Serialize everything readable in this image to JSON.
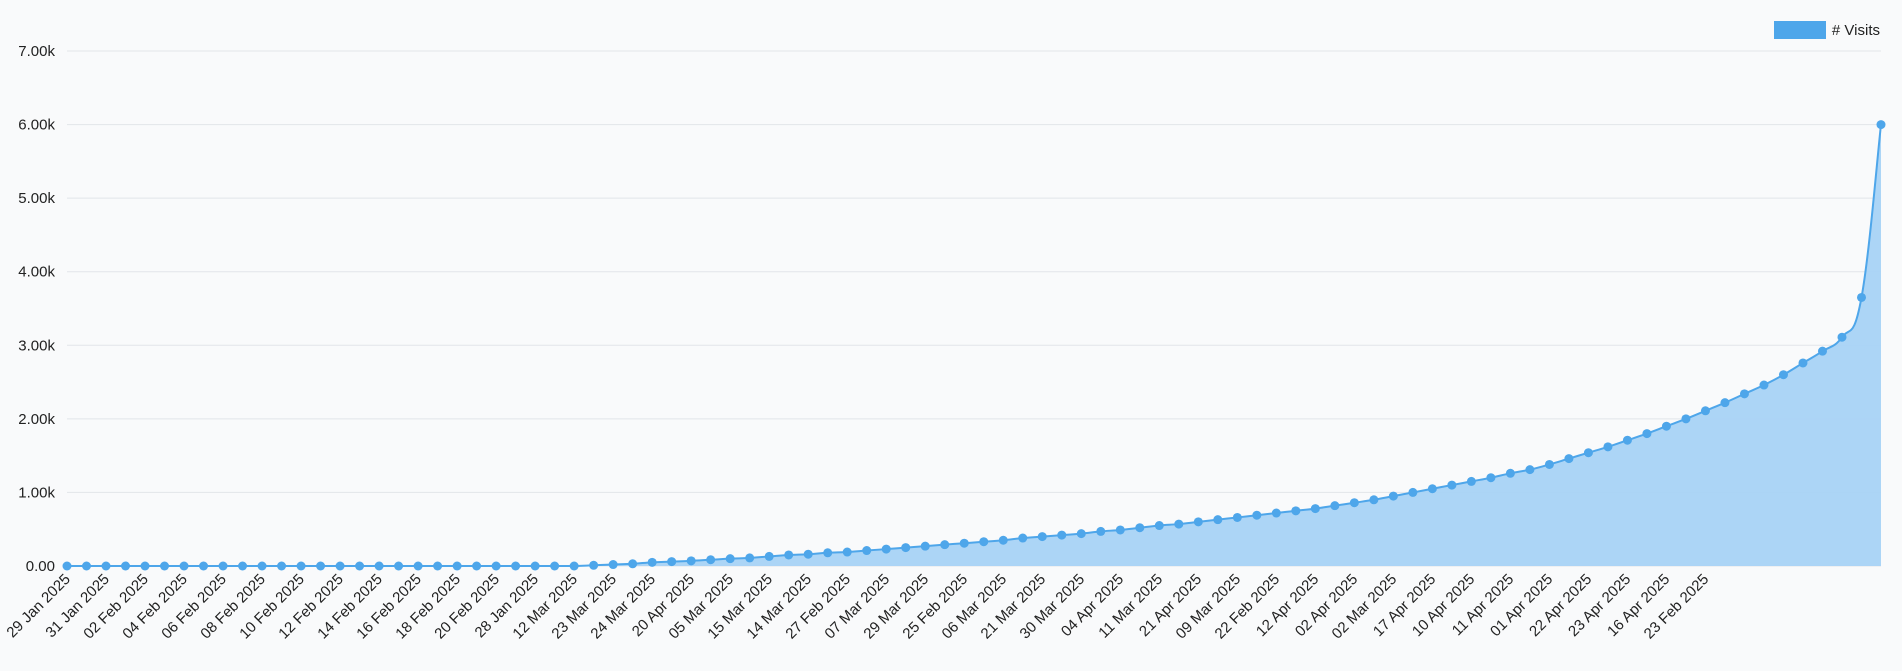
{
  "colors": {
    "line": "#4ea6ea",
    "fill": "#a8d3f6",
    "grid": "#e2e5e9",
    "text": "#222222"
  },
  "legend": {
    "label": "# Visits",
    "position": "top-right"
  },
  "chart_data": {
    "type": "area",
    "title": "",
    "xlabel": "",
    "ylabel": "",
    "ylim": [
      0,
      7000
    ],
    "yticks": [
      "0.00",
      "1.00k",
      "2.00k",
      "3.00k",
      "4.00k",
      "5.00k",
      "6.00k",
      "7.00k"
    ],
    "grid": true,
    "tick_labels": [
      "29 Jan 2025",
      "31 Jan 2025",
      "02 Feb 2025",
      "04 Feb 2025",
      "06 Feb 2025",
      "08 Feb 2025",
      "10 Feb 2025",
      "12 Feb 2025",
      "14 Feb 2025",
      "16 Feb 2025",
      "18 Feb 2025",
      "20 Feb 2025",
      "28 Jan 2025",
      "12 Mar 2025",
      "23 Mar 2025",
      "24 Mar 2025",
      "20 Apr 2025",
      "05 Mar 2025",
      "15 Mar 2025",
      "14 Mar 2025",
      "27 Feb 2025",
      "07 Mar 2025",
      "29 Mar 2025",
      "25 Feb 2025",
      "06 Mar 2025",
      "21 Mar 2025",
      "30 Mar 2025",
      "04 Apr 2025",
      "11 Mar 2025",
      "21 Apr 2025",
      "09 Mar 2025",
      "22 Feb 2025",
      "12 Apr 2025",
      "02 Apr 2025",
      "02 Mar 2025",
      "17 Apr 2025",
      "10 Apr 2025",
      "11 Apr 2025",
      "01 Apr 2025",
      "22 Apr 2025",
      "23 Apr 2025",
      "16 Apr 2025",
      "23 Feb 2025"
    ],
    "series": [
      {
        "name": "# Visits",
        "values": [
          0,
          0,
          0,
          0,
          0,
          0,
          0,
          0,
          0,
          0,
          0,
          0,
          0,
          0,
          0,
          0,
          0,
          0,
          0,
          0,
          0,
          0,
          0,
          0,
          0,
          0,
          0,
          10,
          20,
          30,
          50,
          60,
          70,
          85,
          100,
          110,
          130,
          150,
          160,
          180,
          190,
          210,
          230,
          250,
          270,
          290,
          310,
          330,
          350,
          380,
          400,
          420,
          440,
          470,
          490,
          520,
          550,
          570,
          600,
          630,
          660,
          690,
          720,
          750,
          780,
          820,
          860,
          900,
          950,
          1000,
          1050,
          1100,
          1150,
          1200,
          1260,
          1310,
          1380,
          1460,
          1540,
          1620,
          1710,
          1800,
          1900,
          2000,
          2110,
          2220,
          2340,
          2460,
          2600,
          2760,
          2920,
          3110,
          3650,
          6000
        ]
      }
    ]
  }
}
